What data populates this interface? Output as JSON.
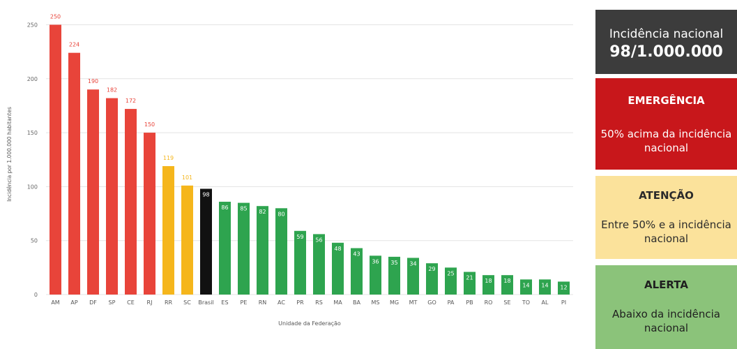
{
  "chart_data": {
    "type": "bar",
    "categories": [
      "AM",
      "AP",
      "DF",
      "SP",
      "CE",
      "RJ",
      "RR",
      "SC",
      "Brasil",
      "ES",
      "PE",
      "RN",
      "AC",
      "PR",
      "RS",
      "MA",
      "BA",
      "MS",
      "MG",
      "MT",
      "GO",
      "PA",
      "PB",
      "RO",
      "SE",
      "TO",
      "AL",
      "PI"
    ],
    "values": [
      250,
      224,
      190,
      182,
      172,
      150,
      119,
      101,
      98,
      86,
      85,
      82,
      80,
      59,
      56,
      48,
      43,
      36,
      35,
      34,
      29,
      25,
      21,
      18,
      18,
      14,
      14,
      12
    ],
    "colors": [
      "#e8443a",
      "#e8443a",
      "#e8443a",
      "#e8443a",
      "#e8443a",
      "#e8443a",
      "#f5b61c",
      "#f5b61c",
      "#111111",
      "#2ea44f",
      "#2ea44f",
      "#2ea44f",
      "#2ea44f",
      "#2ea44f",
      "#2ea44f",
      "#2ea44f",
      "#2ea44f",
      "#2ea44f",
      "#2ea44f",
      "#2ea44f",
      "#2ea44f",
      "#2ea44f",
      "#2ea44f",
      "#2ea44f",
      "#2ea44f",
      "#2ea44f",
      "#2ea44f",
      "#2ea44f"
    ],
    "label_colors": {
      "red": "#e8443a",
      "yellow": "#f5b61c",
      "inside": "#ffffff"
    },
    "xlabel": "Unidade da Federação",
    "ylabel": "Incidência por 1.000.000 habitantes",
    "yticks": [
      0,
      50,
      100,
      150,
      200,
      250
    ],
    "ylim": [
      0,
      260
    ],
    "grid": true,
    "legend": "none"
  },
  "legend_panels": {
    "national": {
      "title": "Incidência nacional",
      "value": "98/1.000.000",
      "color": "#3c3c3c"
    },
    "emergencia": {
      "title": "EMERGÊNCIA",
      "desc": "50% acima da incidência nacional",
      "color": "#c8171b"
    },
    "atencao": {
      "title": "ATENÇÃO",
      "desc": "Entre 50% e a incidência nacional",
      "color": "#fbe29b"
    },
    "alerta": {
      "title": "ALERTA",
      "desc": "Abaixo da incidência nacional",
      "color": "#8bc37a"
    }
  }
}
